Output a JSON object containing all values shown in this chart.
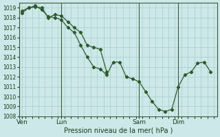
{
  "background_color": "#cce8e8",
  "grid_color": "#aacccc",
  "line_color": "#2d5a2d",
  "marker_color": "#2d5a2d",
  "xlabel": "Pression niveau de la mer( hPa )",
  "ylim": [
    1008,
    1019.5
  ],
  "yticks": [
    1008,
    1009,
    1010,
    1011,
    1012,
    1013,
    1014,
    1015,
    1016,
    1017,
    1018,
    1019
  ],
  "xtick_labels": [
    "Ven",
    "Lun",
    "Sam",
    "Dim"
  ],
  "xtick_positions": [
    0,
    6,
    18,
    24
  ],
  "vlines": [
    6,
    18,
    24
  ],
  "plot_xlim": [
    -0.5,
    30
  ],
  "series1_x": [
    0,
    1,
    2,
    3,
    4,
    5,
    6,
    7,
    8,
    9,
    10,
    11,
    12,
    13
  ],
  "series1_y": [
    1018.7,
    1019.0,
    1019.1,
    1019.0,
    1018.0,
    1018.3,
    1018.2,
    1017.6,
    1017.0,
    1016.5,
    1015.2,
    1015.0,
    1014.8,
    1012.5
  ],
  "series2_x": [
    0,
    1,
    2,
    3,
    4,
    5,
    6,
    7,
    8,
    9,
    10,
    11,
    12,
    13,
    14,
    15,
    16,
    17,
    18,
    19,
    20,
    21,
    22,
    23,
    24,
    25,
    26,
    27,
    28,
    29
  ],
  "series2_y": [
    1018.5,
    1019.0,
    1019.2,
    1018.8,
    1018.1,
    1018.0,
    1017.8,
    1017.0,
    1016.5,
    1015.2,
    1014.0,
    1013.0,
    1012.8,
    1012.2,
    1013.5,
    1013.5,
    1012.0,
    1011.8,
    1011.5,
    1010.5,
    1009.5,
    1008.7,
    1008.5,
    1008.7,
    1011.0,
    1012.2,
    1012.5,
    1013.4,
    1013.5,
    1012.5
  ]
}
